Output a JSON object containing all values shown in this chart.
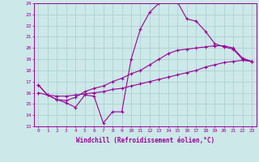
{
  "xlabel": "Windchill (Refroidissement éolien,°C)",
  "bg_color": "#cce8e8",
  "line_color": "#990099",
  "grid_color": "#aacccc",
  "curve1_y": [
    16.7,
    15.8,
    15.4,
    15.1,
    14.7,
    15.8,
    15.7,
    13.3,
    14.3,
    14.3,
    19.0,
    21.7,
    23.2,
    24.0,
    24.2,
    24.1,
    22.6,
    22.4,
    21.5,
    20.4,
    20.1,
    19.9,
    19.0,
    18.8
  ],
  "curve2_y": [
    16.7,
    15.8,
    15.4,
    15.3,
    15.6,
    16.1,
    16.4,
    16.6,
    17.0,
    17.3,
    17.7,
    18.0,
    18.5,
    19.0,
    19.5,
    19.8,
    19.9,
    20.0,
    20.1,
    20.2,
    20.2,
    20.0,
    19.1,
    18.8
  ],
  "curve3_y": [
    16.0,
    15.8,
    15.7,
    15.7,
    15.8,
    15.9,
    16.0,
    16.1,
    16.3,
    16.4,
    16.6,
    16.8,
    17.0,
    17.2,
    17.4,
    17.6,
    17.8,
    18.0,
    18.3,
    18.5,
    18.7,
    18.8,
    18.9,
    18.8
  ],
  "xlim_min": -0.5,
  "xlim_max": 23.5,
  "ylim_min": 13,
  "ylim_max": 24
}
